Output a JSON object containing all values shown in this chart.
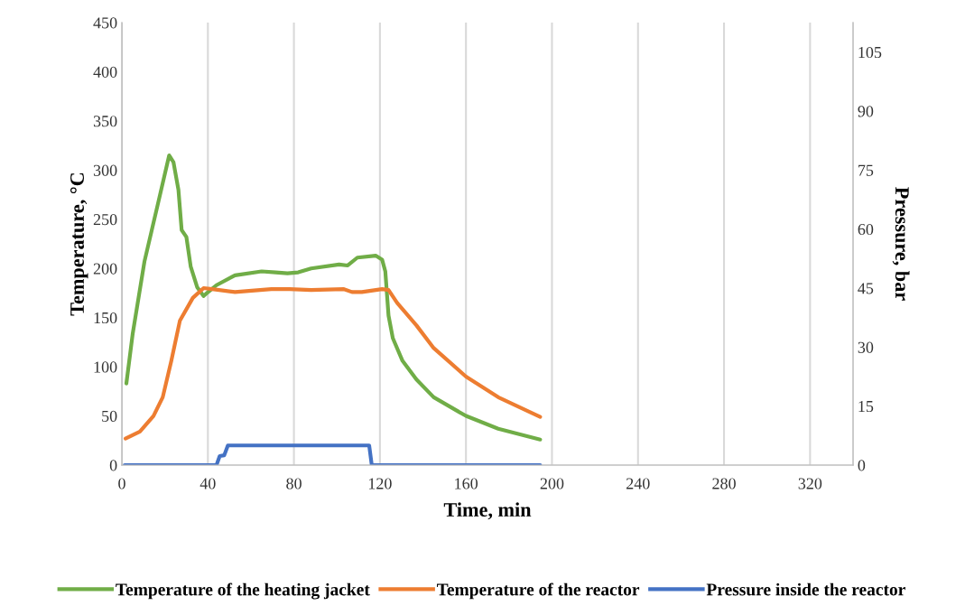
{
  "chart_data": {
    "type": "line",
    "xlabel": "Time, min",
    "ylabel": "Temperature, °C",
    "y2label": "Pressure, bar",
    "xlim": [
      0,
      340
    ],
    "xticks": [
      0,
      40,
      80,
      120,
      160,
      200,
      240,
      280,
      320
    ],
    "ylim": [
      0,
      450
    ],
    "yticks": [
      0,
      50,
      100,
      150,
      200,
      250,
      300,
      350,
      400,
      450
    ],
    "y2lim": [
      0,
      112.5
    ],
    "y2ticks": [
      0,
      15,
      30,
      45,
      60,
      75,
      90,
      105
    ],
    "grid": "x",
    "legend": "bottom",
    "marker": "none",
    "line_style": "solid",
    "series": [
      {
        "name": "Temperature of the heating jacket",
        "color": "#70ad47",
        "x": [
          2.1,
          5,
          10.5,
          16.8,
          22,
          24,
          26.3,
          27.8,
          30,
          32,
          35,
          38,
          39.6,
          44,
          52.6,
          65,
          71.5,
          77,
          82,
          88,
          101,
          105,
          109.5,
          118,
          121,
          122.5,
          124,
          126,
          130.5,
          137,
          145,
          160,
          175,
          194.5
        ],
        "values": [
          83,
          133,
          207,
          266,
          315,
          308,
          280,
          239,
          232,
          202,
          181,
          172,
          175,
          183,
          193,
          197,
          196,
          195,
          196,
          200,
          204,
          203,
          211,
          213,
          209,
          197,
          152,
          129,
          106,
          87,
          69,
          50,
          37,
          26
        ]
      },
      {
        "name": "Temperature of the reactor",
        "color": "#ed7d31",
        "x": [
          1.7,
          8.4,
          14.7,
          19,
          23,
          27,
          33,
          38,
          42,
          52.6,
          69.5,
          78,
          88,
          103,
          107,
          111.6,
          121,
          124,
          128,
          137,
          145,
          160,
          175,
          194.5
        ],
        "values": [
          27,
          34,
          50,
          69,
          106,
          147,
          170,
          180,
          179,
          176,
          179,
          179,
          178,
          179,
          176,
          176,
          179,
          178,
          165,
          142,
          119,
          90,
          69,
          49
        ]
      },
      {
        "name": "Pressure inside the reactor",
        "color": "#4472c4",
        "axis": "y2",
        "x": [
          1.3,
          44,
          45.5,
          47.6,
          49.3,
          50.5,
          113.7,
          115,
          116.2,
          194.5
        ],
        "values": [
          0,
          0,
          2.3,
          2.5,
          5,
          5,
          5,
          5,
          0,
          0
        ]
      }
    ]
  }
}
